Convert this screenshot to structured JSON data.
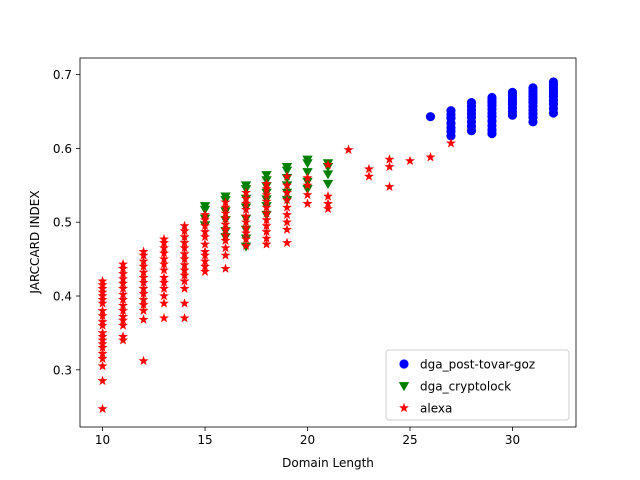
{
  "chart_data": {
    "type": "scatter",
    "title": "",
    "xlabel": "Domain Length",
    "ylabel": "JARCCARD INDEX",
    "xlim": [
      8.9,
      33.1
    ],
    "ylim": [
      0.2225,
      0.7225
    ],
    "xticks": [
      10,
      15,
      20,
      25,
      30
    ],
    "yticks": [
      0.3,
      0.4,
      0.5,
      0.6,
      0.7
    ],
    "xtick_labels": [
      "10",
      "15",
      "20",
      "25",
      "30"
    ],
    "ytick_labels": [
      "0.3",
      "0.4",
      "0.5",
      "0.6",
      "0.7"
    ],
    "grid": false,
    "legend_position": "lower-right",
    "series": [
      {
        "name": "dga_post-tovar-goz",
        "color": "#0000ff",
        "marker": "circle",
        "points": [
          [
            26,
            0.643
          ],
          [
            27,
            0.651
          ],
          [
            27,
            0.646
          ],
          [
            27,
            0.641
          ],
          [
            27,
            0.634
          ],
          [
            27,
            0.628
          ],
          [
            27,
            0.623
          ],
          [
            27,
            0.617
          ],
          [
            28,
            0.662
          ],
          [
            28,
            0.657
          ],
          [
            28,
            0.652
          ],
          [
            28,
            0.647
          ],
          [
            28,
            0.642
          ],
          [
            28,
            0.636
          ],
          [
            28,
            0.63
          ],
          [
            28,
            0.624
          ],
          [
            29,
            0.669
          ],
          [
            29,
            0.666
          ],
          [
            29,
            0.662
          ],
          [
            29,
            0.658
          ],
          [
            29,
            0.653
          ],
          [
            29,
            0.648
          ],
          [
            29,
            0.643
          ],
          [
            29,
            0.637
          ],
          [
            29,
            0.631
          ],
          [
            29,
            0.625
          ],
          [
            29,
            0.62
          ],
          [
            30,
            0.676
          ],
          [
            30,
            0.672
          ],
          [
            30,
            0.668
          ],
          [
            30,
            0.664
          ],
          [
            30,
            0.66
          ],
          [
            30,
            0.655
          ],
          [
            30,
            0.65
          ],
          [
            30,
            0.645
          ],
          [
            31,
            0.682
          ],
          [
            31,
            0.678
          ],
          [
            31,
            0.674
          ],
          [
            31,
            0.67
          ],
          [
            31,
            0.666
          ],
          [
            31,
            0.662
          ],
          [
            31,
            0.657
          ],
          [
            31,
            0.652
          ],
          [
            31,
            0.647
          ],
          [
            31,
            0.642
          ],
          [
            31,
            0.636
          ],
          [
            32,
            0.69
          ],
          [
            32,
            0.686
          ],
          [
            32,
            0.682
          ],
          [
            32,
            0.678
          ],
          [
            32,
            0.674
          ],
          [
            32,
            0.67
          ],
          [
            32,
            0.665
          ],
          [
            32,
            0.66
          ],
          [
            32,
            0.654
          ],
          [
            32,
            0.648
          ]
        ]
      },
      {
        "name": "dga_cryptolock",
        "color": "#008000",
        "marker": "triangle-down",
        "points": [
          [
            15,
            0.522
          ],
          [
            15,
            0.517
          ],
          [
            15,
            0.505
          ],
          [
            15,
            0.496
          ],
          [
            16,
            0.535
          ],
          [
            16,
            0.53
          ],
          [
            16,
            0.515
          ],
          [
            16,
            0.503
          ],
          [
            16,
            0.488
          ],
          [
            16,
            0.48
          ],
          [
            17,
            0.55
          ],
          [
            17,
            0.545
          ],
          [
            17,
            0.532
          ],
          [
            17,
            0.52
          ],
          [
            17,
            0.505
          ],
          [
            17,
            0.49
          ],
          [
            17,
            0.478
          ],
          [
            17,
            0.467
          ],
          [
            18,
            0.564
          ],
          [
            18,
            0.557
          ],
          [
            18,
            0.549
          ],
          [
            18,
            0.54
          ],
          [
            18,
            0.531
          ],
          [
            18,
            0.522
          ],
          [
            18,
            0.51
          ],
          [
            19,
            0.575
          ],
          [
            19,
            0.57
          ],
          [
            19,
            0.56
          ],
          [
            19,
            0.55
          ],
          [
            19,
            0.54
          ],
          [
            19,
            0.53
          ],
          [
            20,
            0.585
          ],
          [
            20,
            0.58
          ],
          [
            20,
            0.568
          ],
          [
            20,
            0.555
          ],
          [
            20,
            0.545
          ],
          [
            21,
            0.58
          ],
          [
            21,
            0.575
          ],
          [
            21,
            0.565
          ],
          [
            21,
            0.552
          ]
        ]
      },
      {
        "name": "alexa",
        "color": "#ff0000",
        "marker": "star",
        "points": [
          [
            10,
            0.42
          ],
          [
            10,
            0.415
          ],
          [
            10,
            0.41
          ],
          [
            10,
            0.405
          ],
          [
            10,
            0.4
          ],
          [
            10,
            0.395
          ],
          [
            10,
            0.39
          ],
          [
            10,
            0.38
          ],
          [
            10,
            0.373
          ],
          [
            10,
            0.365
          ],
          [
            10,
            0.36
          ],
          [
            10,
            0.35
          ],
          [
            10,
            0.345
          ],
          [
            10,
            0.34
          ],
          [
            10,
            0.335
          ],
          [
            10,
            0.33
          ],
          [
            10,
            0.322
          ],
          [
            10,
            0.315
          ],
          [
            10,
            0.305
          ],
          [
            10,
            0.285
          ],
          [
            10,
            0.247
          ],
          [
            11,
            0.443
          ],
          [
            11,
            0.437
          ],
          [
            11,
            0.43
          ],
          [
            11,
            0.423
          ],
          [
            11,
            0.417
          ],
          [
            11,
            0.41
          ],
          [
            11,
            0.402
          ],
          [
            11,
            0.395
          ],
          [
            11,
            0.387
          ],
          [
            11,
            0.38
          ],
          [
            11,
            0.372
          ],
          [
            11,
            0.367
          ],
          [
            11,
            0.36
          ],
          [
            11,
            0.345
          ],
          [
            11,
            0.34
          ],
          [
            12,
            0.46
          ],
          [
            12,
            0.455
          ],
          [
            12,
            0.447
          ],
          [
            12,
            0.44
          ],
          [
            12,
            0.432
          ],
          [
            12,
            0.425
          ],
          [
            12,
            0.418
          ],
          [
            12,
            0.41
          ],
          [
            12,
            0.403
          ],
          [
            12,
            0.395
          ],
          [
            12,
            0.388
          ],
          [
            12,
            0.38
          ],
          [
            12,
            0.368
          ],
          [
            12,
            0.312
          ],
          [
            13,
            0.477
          ],
          [
            13,
            0.472
          ],
          [
            13,
            0.465
          ],
          [
            13,
            0.458
          ],
          [
            13,
            0.45
          ],
          [
            13,
            0.443
          ],
          [
            13,
            0.435
          ],
          [
            13,
            0.425
          ],
          [
            13,
            0.418
          ],
          [
            13,
            0.41
          ],
          [
            13,
            0.4
          ],
          [
            13,
            0.39
          ],
          [
            13,
            0.37
          ],
          [
            14,
            0.495
          ],
          [
            14,
            0.488
          ],
          [
            14,
            0.48
          ],
          [
            14,
            0.472
          ],
          [
            14,
            0.465
          ],
          [
            14,
            0.457
          ],
          [
            14,
            0.45
          ],
          [
            14,
            0.442
          ],
          [
            14,
            0.435
          ],
          [
            14,
            0.428
          ],
          [
            14,
            0.42
          ],
          [
            14,
            0.41
          ],
          [
            14,
            0.39
          ],
          [
            14,
            0.37
          ],
          [
            15,
            0.51
          ],
          [
            15,
            0.503
          ],
          [
            15,
            0.495
          ],
          [
            15,
            0.487
          ],
          [
            15,
            0.48
          ],
          [
            15,
            0.47
          ],
          [
            15,
            0.46
          ],
          [
            15,
            0.455
          ],
          [
            15,
            0.447
          ],
          [
            15,
            0.44
          ],
          [
            15,
            0.433
          ],
          [
            16,
            0.527
          ],
          [
            16,
            0.52
          ],
          [
            16,
            0.512
          ],
          [
            16,
            0.505
          ],
          [
            16,
            0.497
          ],
          [
            16,
            0.49
          ],
          [
            16,
            0.482
          ],
          [
            16,
            0.475
          ],
          [
            16,
            0.465
          ],
          [
            16,
            0.455
          ],
          [
            16,
            0.437
          ],
          [
            17,
            0.54
          ],
          [
            17,
            0.532
          ],
          [
            17,
            0.525
          ],
          [
            17,
            0.517
          ],
          [
            17,
            0.508
          ],
          [
            17,
            0.5
          ],
          [
            17,
            0.492
          ],
          [
            17,
            0.485
          ],
          [
            17,
            0.477
          ],
          [
            17,
            0.468
          ],
          [
            18,
            0.552
          ],
          [
            18,
            0.545
          ],
          [
            18,
            0.537
          ],
          [
            18,
            0.528
          ],
          [
            18,
            0.52
          ],
          [
            18,
            0.512
          ],
          [
            18,
            0.503
          ],
          [
            18,
            0.495
          ],
          [
            18,
            0.487
          ],
          [
            18,
            0.478
          ],
          [
            18,
            0.47
          ],
          [
            19,
            0.562
          ],
          [
            19,
            0.55
          ],
          [
            19,
            0.54
          ],
          [
            19,
            0.53
          ],
          [
            19,
            0.52
          ],
          [
            19,
            0.51
          ],
          [
            19,
            0.5
          ],
          [
            19,
            0.49
          ],
          [
            19,
            0.472
          ],
          [
            20,
            0.56
          ],
          [
            20,
            0.55
          ],
          [
            20,
            0.537
          ],
          [
            20,
            0.525
          ],
          [
            21,
            0.578
          ],
          [
            21,
            0.535
          ],
          [
            21,
            0.525
          ],
          [
            21,
            0.518
          ],
          [
            22,
            0.598
          ],
          [
            23,
            0.572
          ],
          [
            23,
            0.562
          ],
          [
            24,
            0.585
          ],
          [
            24,
            0.575
          ],
          [
            24,
            0.548
          ],
          [
            25,
            0.583
          ],
          [
            26,
            0.588
          ],
          [
            27,
            0.607
          ]
        ]
      }
    ]
  }
}
